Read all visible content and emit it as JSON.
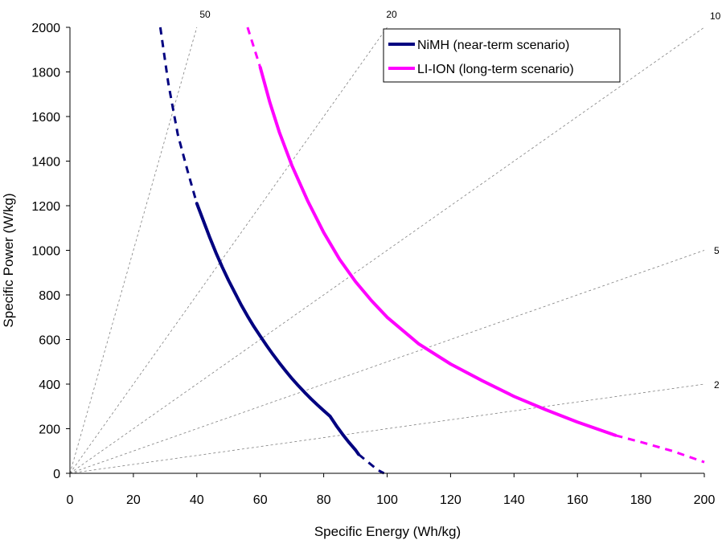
{
  "chart_data": {
    "type": "line",
    "xlabel": "Specific Energy (Wh/kg)",
    "ylabel": "Specific Power (W/kg)",
    "xlim": [
      0,
      200
    ],
    "ylim": [
      0,
      2000
    ],
    "xticks": [
      0,
      20,
      40,
      60,
      80,
      100,
      120,
      140,
      160,
      180,
      200
    ],
    "yticks": [
      0,
      200,
      400,
      600,
      800,
      1000,
      1200,
      1400,
      1600,
      1800,
      2000
    ],
    "grid": false,
    "legend_position": "top-right",
    "ratio_lines": [
      {
        "label": "50",
        "ratio": 50
      },
      {
        "label": "20",
        "ratio": 20
      },
      {
        "label": "10",
        "ratio": 10
      },
      {
        "label": "5",
        "ratio": 5
      },
      {
        "label": "2",
        "ratio": 2
      }
    ],
    "series": [
      {
        "name": "NiMH (near-term scenario)",
        "color": "#000080",
        "solid": [
          [
            40,
            1210
          ],
          [
            42,
            1135
          ],
          [
            44,
            1060
          ],
          [
            46,
            990
          ],
          [
            48,
            925
          ],
          [
            50,
            865
          ],
          [
            52,
            810
          ],
          [
            54,
            755
          ],
          [
            56,
            705
          ],
          [
            58,
            658
          ],
          [
            60,
            615
          ],
          [
            62,
            573
          ],
          [
            64,
            533
          ],
          [
            66,
            495
          ],
          [
            68,
            459
          ],
          [
            70,
            425
          ],
          [
            72,
            393
          ],
          [
            74,
            363
          ],
          [
            76,
            334
          ],
          [
            78,
            307
          ],
          [
            80,
            281
          ],
          [
            82,
            256
          ],
          [
            84,
            213
          ],
          [
            86,
            174
          ],
          [
            88,
            138
          ],
          [
            90,
            105
          ],
          [
            91,
            85
          ]
        ],
        "dashed_low": [
          [
            91,
            85
          ],
          [
            94,
            50
          ],
          [
            97,
            15
          ],
          [
            99,
            0
          ]
        ],
        "dashed_high": [
          [
            28.5,
            2000
          ],
          [
            31,
            1750
          ],
          [
            34,
            1520
          ],
          [
            37,
            1360
          ],
          [
            40,
            1210
          ]
        ]
      },
      {
        "name": "LI-ION (long-term scenario)",
        "color": "#ff00ff",
        "solid": [
          [
            60,
            1820
          ],
          [
            63,
            1665
          ],
          [
            66,
            1530
          ],
          [
            70,
            1380
          ],
          [
            75,
            1220
          ],
          [
            80,
            1080
          ],
          [
            85,
            960
          ],
          [
            90,
            860
          ],
          [
            95,
            775
          ],
          [
            100,
            700
          ],
          [
            110,
            580
          ],
          [
            120,
            490
          ],
          [
            130,
            415
          ],
          [
            140,
            345
          ],
          [
            150,
            285
          ],
          [
            160,
            230
          ],
          [
            172,
            170
          ]
        ],
        "dashed_low": [
          [
            172,
            170
          ],
          [
            180,
            140
          ],
          [
            190,
            100
          ],
          [
            200,
            50
          ]
        ],
        "dashed_high": [
          [
            56,
            2000
          ],
          [
            58,
            1910
          ],
          [
            60,
            1820
          ]
        ]
      }
    ]
  }
}
